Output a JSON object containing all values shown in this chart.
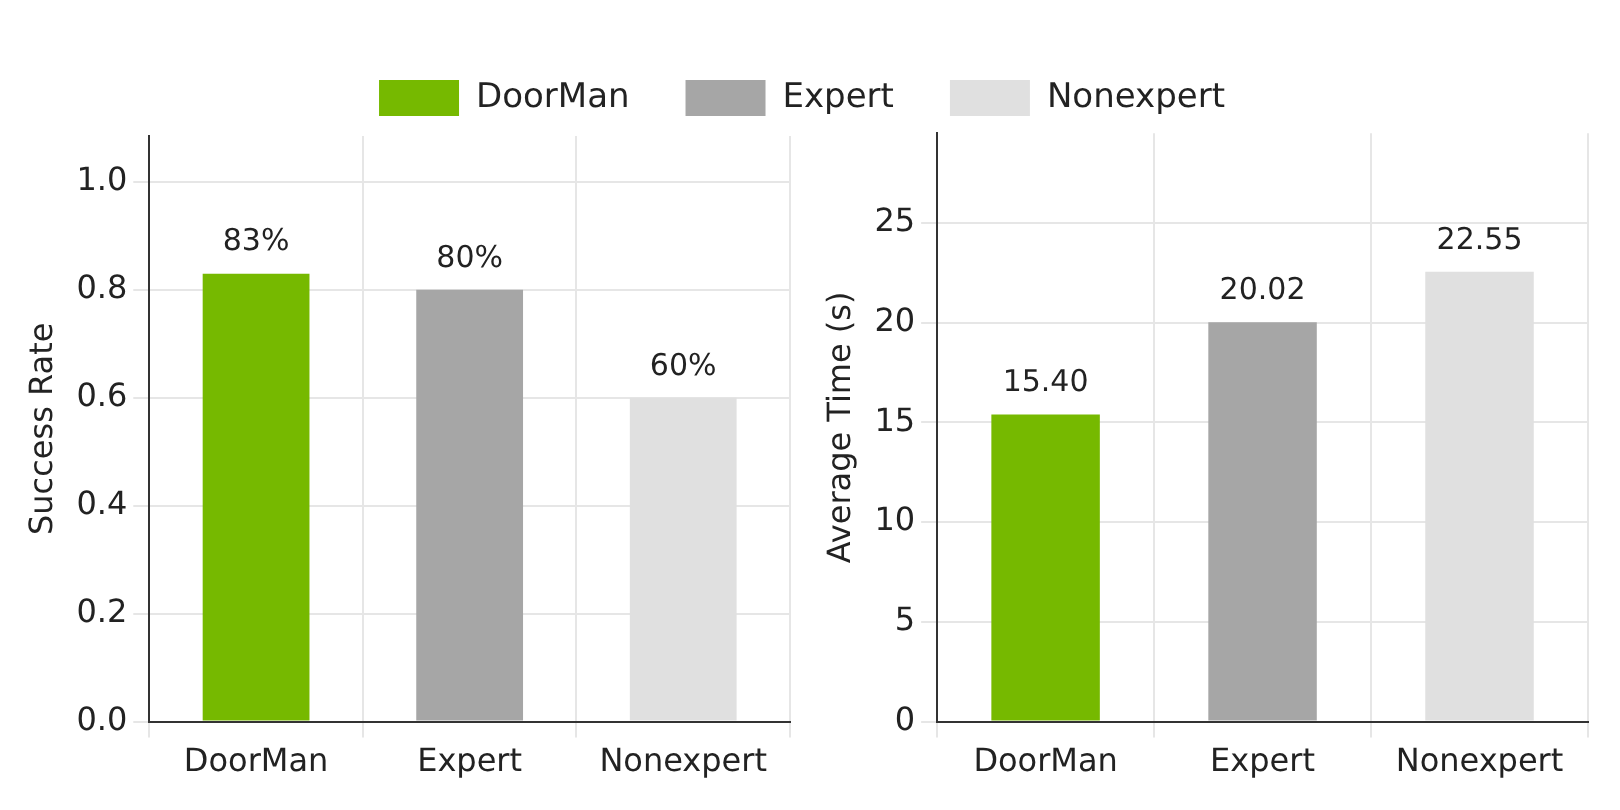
{
  "chart_data": [
    {
      "type": "bar",
      "ylabel": "Success Rate",
      "categories": [
        "DoorMan",
        "Expert",
        "Nonexpert"
      ],
      "series": [
        {
          "name": "DoorMan",
          "color": "#76b900",
          "values": [
            0.83,
            null,
            null
          ],
          "value_labels": [
            "83%",
            null,
            null
          ]
        },
        {
          "name": "Expert",
          "color": "#a6a6a6",
          "values": [
            null,
            0.8,
            null
          ],
          "value_labels": [
            null,
            "80%",
            null
          ]
        },
        {
          "name": "Nonexpert",
          "color": "#e0e0e0",
          "values": [
            null,
            null,
            0.6
          ],
          "value_labels": [
            null,
            null,
            "60%"
          ]
        }
      ],
      "ylim": [
        0,
        1.085
      ],
      "yticks": [
        {
          "value": 0,
          "label": "0.0"
        },
        0.2,
        0.4,
        0.6,
        0.8,
        {
          "value": 1,
          "label": "1.0"
        }
      ],
      "grid": true,
      "legend": "top"
    },
    {
      "type": "bar",
      "ylabel": "Average Time (s)",
      "categories": [
        "DoorMan",
        "Expert",
        "Nonexpert"
      ],
      "series": [
        {
          "color": "#76b900",
          "values": [
            15.4,
            null,
            null
          ],
          "value_labels": [
            "15.40",
            null,
            null
          ]
        },
        {
          "color": "#a6a6a6",
          "values": [
            null,
            20.02,
            null
          ],
          "value_labels": [
            null,
            "20.02",
            null
          ]
        },
        {
          "color": "#e0e0e0",
          "values": [
            null,
            null,
            22.55
          ],
          "value_labels": [
            null,
            null,
            "22.55"
          ]
        }
      ],
      "ylim": [
        0,
        29.5
      ],
      "yticks": [
        0,
        5,
        10,
        15,
        20,
        25
      ],
      "grid": true
    }
  ]
}
